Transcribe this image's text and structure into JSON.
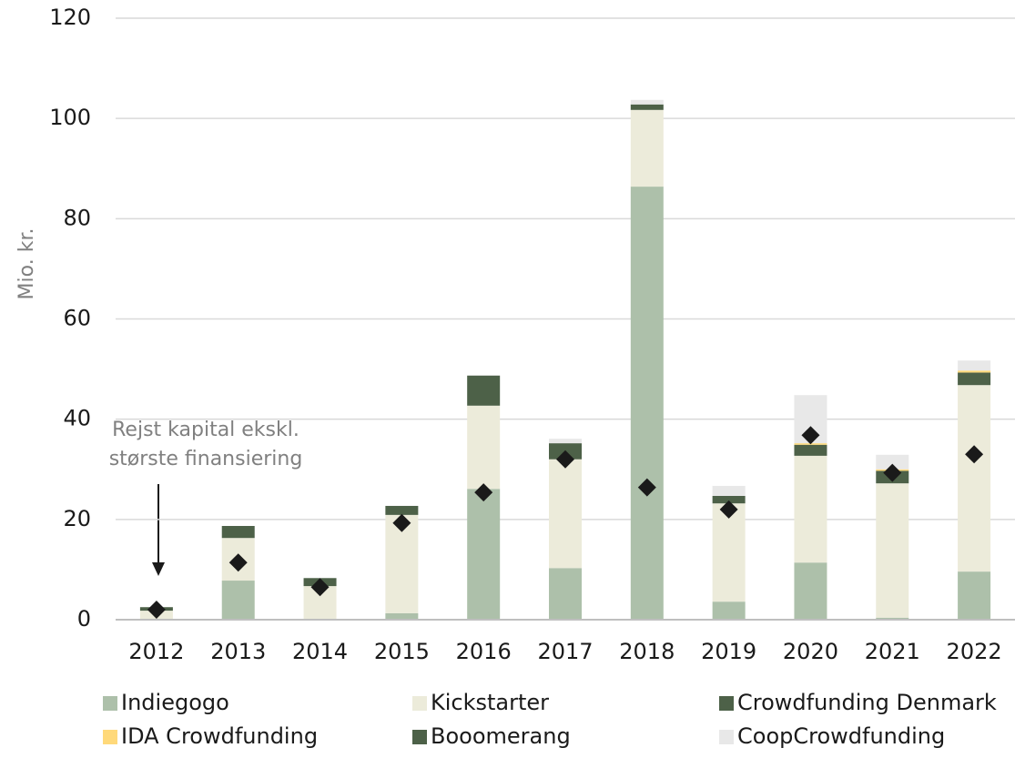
{
  "chart_data": {
    "type": "stacked_bar",
    "y_label": "Mio. kr.",
    "categories": [
      "2012",
      "2013",
      "2014",
      "2015",
      "2016",
      "2017",
      "2018",
      "2019",
      "2020",
      "2021",
      "2022"
    ],
    "series": [
      {
        "name": "Indiegogo",
        "color": "#adc0aa",
        "values": [
          0,
          7.8,
          0,
          1.3,
          26.1,
          10.3,
          86.4,
          3.6,
          11.4,
          0.4,
          9.6
        ]
      },
      {
        "name": "Kickstarter",
        "color": "#ecebda",
        "values": [
          1.8,
          8.5,
          6.7,
          19.6,
          16.6,
          21.7,
          15.3,
          19.6,
          21.3,
          26.8,
          37.2
        ]
      },
      {
        "name": "Crowdfunding Denmark",
        "color": "#4d6148",
        "values": [
          0.7,
          2.4,
          1.6,
          1.8,
          6.0,
          3.2,
          1.1,
          1.5,
          2.2,
          2.5,
          2.5
        ]
      },
      {
        "name": "IDA Crowdfunding",
        "color": "#ffd97a",
        "values": [
          0,
          0,
          0,
          0,
          0,
          0,
          0,
          0,
          0.3,
          0.3,
          0.4
        ]
      },
      {
        "name": "Booomerang",
        "color": "#4d6148",
        "values": [
          0,
          0,
          0,
          0,
          0,
          0,
          0,
          0,
          0,
          0,
          0
        ]
      },
      {
        "name": "CoopCrowdfunding",
        "color": "#e8e8e8",
        "values": [
          0,
          0,
          0,
          0,
          0,
          0.9,
          0.9,
          2.0,
          9.6,
          2.9,
          2.0
        ]
      }
    ],
    "annotation": "Rejst kapital ekskl. største finansiering",
    "marker_values": [
      2,
      11.4,
      6.5,
      19.3,
      25.4,
      32,
      26.4,
      22,
      36.8,
      29.3,
      33
    ],
    "marker_color": "#1a1a1a",
    "ylim": [
      0,
      120
    ],
    "yticks": [
      0,
      20,
      40,
      60,
      80,
      100,
      120
    ],
    "grid": true
  }
}
